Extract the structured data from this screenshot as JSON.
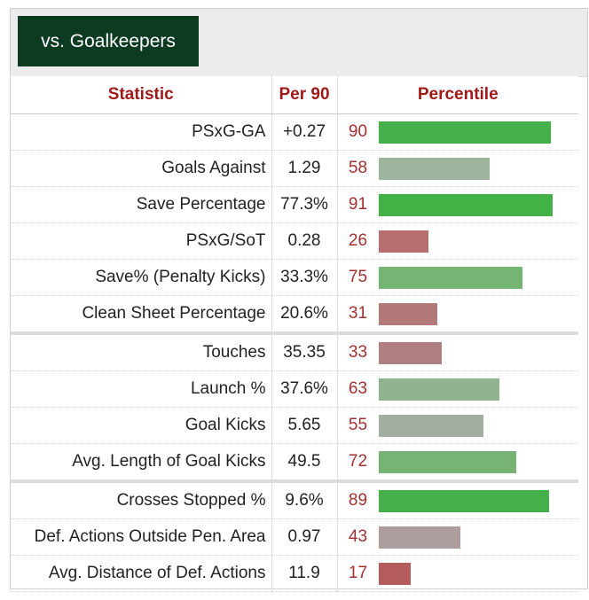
{
  "tab": {
    "label": "vs. Goalkeepers"
  },
  "table": {
    "headers": {
      "statistic": "Statistic",
      "per90": "Per 90",
      "percentile": "Percentile"
    },
    "rows": [
      {
        "stat": "PSxG-GA",
        "per90": "+0.27",
        "percentile": 90,
        "color": "#44b04a",
        "sep": false
      },
      {
        "stat": "Goals Against",
        "per90": "1.29",
        "percentile": 58,
        "color": "#9db49d",
        "sep": false
      },
      {
        "stat": "Save Percentage",
        "per90": "77.3%",
        "percentile": 91,
        "color": "#42b146",
        "sep": false
      },
      {
        "stat": "PSxG/SoT",
        "per90": "0.28",
        "percentile": 26,
        "color": "#b66e6e",
        "sep": false
      },
      {
        "stat": "Save% (Penalty Kicks)",
        "per90": "33.3%",
        "percentile": 75,
        "color": "#75b573",
        "sep": false
      },
      {
        "stat": "Clean Sheet Percentage",
        "per90": "20.6%",
        "percentile": 31,
        "color": "#b37878",
        "sep": false
      },
      {
        "stat": "Touches",
        "per90": "35.35",
        "percentile": 33,
        "color": "#b08080",
        "sep": true
      },
      {
        "stat": "Launch %",
        "per90": "37.6%",
        "percentile": 63,
        "color": "#8fb38e",
        "sep": false
      },
      {
        "stat": "Goal Kicks",
        "per90": "5.65",
        "percentile": 55,
        "color": "#a2aea2",
        "sep": false
      },
      {
        "stat": "Avg. Length of Goal Kicks",
        "per90": "49.5",
        "percentile": 72,
        "color": "#76b375",
        "sep": false
      },
      {
        "stat": "Crosses Stopped %",
        "per90": "9.6%",
        "percentile": 89,
        "color": "#45b04a",
        "sep": true
      },
      {
        "stat": "Def. Actions Outside Pen. Area",
        "per90": "0.97",
        "percentile": 43,
        "color": "#ad9d9d",
        "sep": false
      },
      {
        "stat": "Avg. Distance of Def. Actions",
        "per90": "11.9",
        "percentile": 17,
        "color": "#b45b5b",
        "sep": false
      }
    ]
  }
}
